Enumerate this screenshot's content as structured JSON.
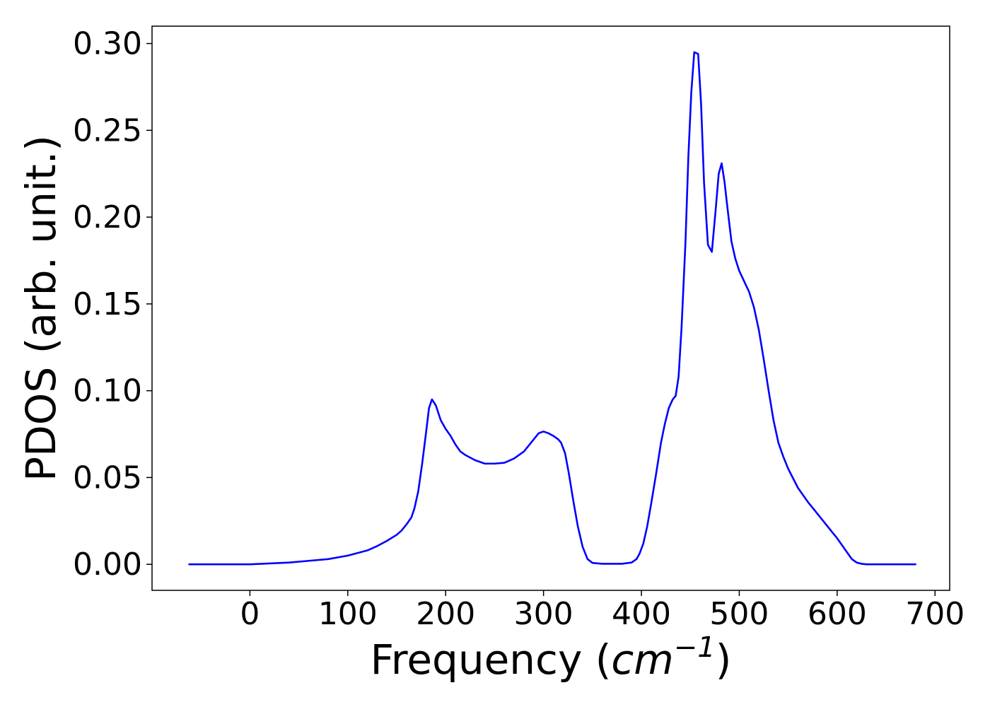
{
  "chart_data": {
    "type": "line",
    "title": "",
    "xlabel_main": "Frequency (",
    "xlabel_var": "cm",
    "xlabel_sup": "−1",
    "xlabel_close": ")",
    "ylabel": "PDOS (arb. unit.)",
    "xlim": [
      -100,
      715
    ],
    "ylim": [
      -0.015,
      0.31
    ],
    "xticks": [
      0,
      100,
      200,
      300,
      400,
      500,
      600,
      700
    ],
    "xtick_labels": [
      "0",
      "100",
      "200",
      "300",
      "400",
      "500",
      "600",
      "700"
    ],
    "yticks": [
      0.0,
      0.05,
      0.1,
      0.15,
      0.2,
      0.25,
      0.3
    ],
    "ytick_labels": [
      "0.00",
      "0.05",
      "0.10",
      "0.15",
      "0.20",
      "0.25",
      "0.30"
    ],
    "grid": false,
    "legend": "none",
    "series": [
      {
        "color": "#0000ff",
        "x": [
          -62,
          0,
          20,
          40,
          60,
          80,
          100,
          120,
          130,
          140,
          150,
          155,
          160,
          165,
          168,
          172,
          176,
          180,
          183,
          186,
          190,
          195,
          200,
          205,
          210,
          215,
          220,
          230,
          240,
          250,
          260,
          270,
          280,
          290,
          295,
          300,
          305,
          310,
          315,
          318,
          322,
          326,
          330,
          335,
          340,
          345,
          350,
          360,
          380,
          390,
          395,
          398,
          402,
          406,
          410,
          415,
          420,
          424,
          428,
          432,
          435,
          438,
          441,
          445,
          448,
          451,
          454,
          458,
          461,
          464,
          468,
          472,
          476,
          479,
          482,
          485,
          488,
          492,
          496,
          500,
          505,
          510,
          515,
          520,
          525,
          530,
          535,
          540,
          545,
          550,
          560,
          570,
          580,
          590,
          600,
          605,
          610,
          615,
          620,
          625,
          630,
          640,
          660,
          680
        ],
        "y": [
          0.0,
          0.0,
          0.0005,
          0.001,
          0.002,
          0.003,
          0.005,
          0.008,
          0.0105,
          0.0135,
          0.017,
          0.0195,
          0.023,
          0.027,
          0.032,
          0.042,
          0.058,
          0.076,
          0.09,
          0.095,
          0.0915,
          0.083,
          0.078,
          0.074,
          0.069,
          0.065,
          0.063,
          0.06,
          0.058,
          0.058,
          0.0585,
          0.061,
          0.065,
          0.072,
          0.0755,
          0.0765,
          0.0755,
          0.074,
          0.072,
          0.07,
          0.064,
          0.052,
          0.038,
          0.022,
          0.01,
          0.003,
          0.0008,
          0.0003,
          0.0003,
          0.001,
          0.003,
          0.006,
          0.012,
          0.022,
          0.035,
          0.052,
          0.07,
          0.081,
          0.09,
          0.095,
          0.097,
          0.108,
          0.136,
          0.185,
          0.235,
          0.272,
          0.295,
          0.294,
          0.265,
          0.22,
          0.184,
          0.18,
          0.205,
          0.225,
          0.231,
          0.22,
          0.205,
          0.186,
          0.176,
          0.169,
          0.163,
          0.157,
          0.148,
          0.135,
          0.118,
          0.1,
          0.083,
          0.07,
          0.062,
          0.055,
          0.044,
          0.036,
          0.029,
          0.022,
          0.015,
          0.011,
          0.007,
          0.003,
          0.001,
          0.0003,
          0.0,
          0.0,
          0.0,
          0.0
        ]
      }
    ]
  }
}
